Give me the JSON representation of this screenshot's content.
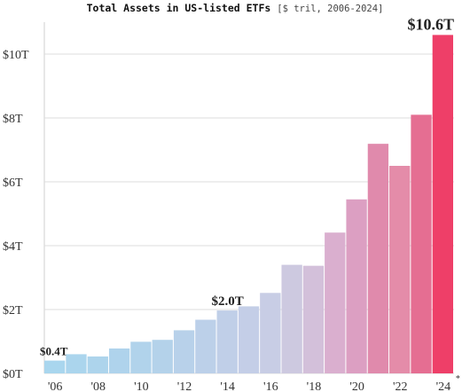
{
  "chart_data": {
    "type": "bar",
    "title": "Total Assets in US-listed ETFs",
    "subtitle": "[$ tril, 2006-2024]",
    "xlabel": "",
    "ylabel": "",
    "categories": [
      "2006",
      "2007",
      "2008",
      "2009",
      "2010",
      "2011",
      "2012",
      "2013",
      "2014",
      "2015",
      "2016",
      "2017",
      "2018",
      "2019",
      "2020",
      "2021",
      "2022",
      "2023",
      "2024"
    ],
    "values": [
      0.4,
      0.6,
      0.53,
      0.78,
      0.99,
      1.05,
      1.35,
      1.68,
      1.97,
      2.1,
      2.52,
      3.4,
      3.37,
      4.41,
      5.45,
      7.19,
      6.5,
      8.1,
      10.6
    ],
    "colors": [
      "#a9d6ee",
      "#abd5ed",
      "#add4ec",
      "#afd3ec",
      "#b1d3eb",
      "#b4d2ea",
      "#b8d1ea",
      "#bcd0e9",
      "#c0cfe8",
      "#c4cee7",
      "#c8cde5",
      "#cdc9e0",
      "#d3c0da",
      "#daafcf",
      "#dc9fc2",
      "#e08aac",
      "#e48ca9",
      "#e56e92",
      "#ee3f68"
    ],
    "ylim": [
      0,
      11
    ],
    "yticks": [
      {
        "value": 0,
        "label": "$0T"
      },
      {
        "value": 2,
        "label": "$2T"
      },
      {
        "value": 4,
        "label": "$4T"
      },
      {
        "value": 6,
        "label": "$6T"
      },
      {
        "value": 8,
        "label": "$8T"
      },
      {
        "value": 10,
        "label": "$10T"
      }
    ],
    "xticks": [
      {
        "category": "2006",
        "label": "'06"
      },
      {
        "category": "2008",
        "label": "'08"
      },
      {
        "category": "2010",
        "label": "'10"
      },
      {
        "category": "2012",
        "label": "'12"
      },
      {
        "category": "2014",
        "label": "'14"
      },
      {
        "category": "2016",
        "label": "'16"
      },
      {
        "category": "2018",
        "label": "'18"
      },
      {
        "category": "2020",
        "label": "'20"
      },
      {
        "category": "2022",
        "label": "'22"
      },
      {
        "category": "2024",
        "label": "'24"
      }
    ],
    "asterisk": "*",
    "annotations": [
      {
        "category": "2006",
        "label": "$0.4T"
      },
      {
        "category": "2014",
        "label": "$2.0T"
      },
      {
        "category": "2024",
        "label": "$10.6T"
      }
    ],
    "grid": "horizontal",
    "legend": "none"
  }
}
